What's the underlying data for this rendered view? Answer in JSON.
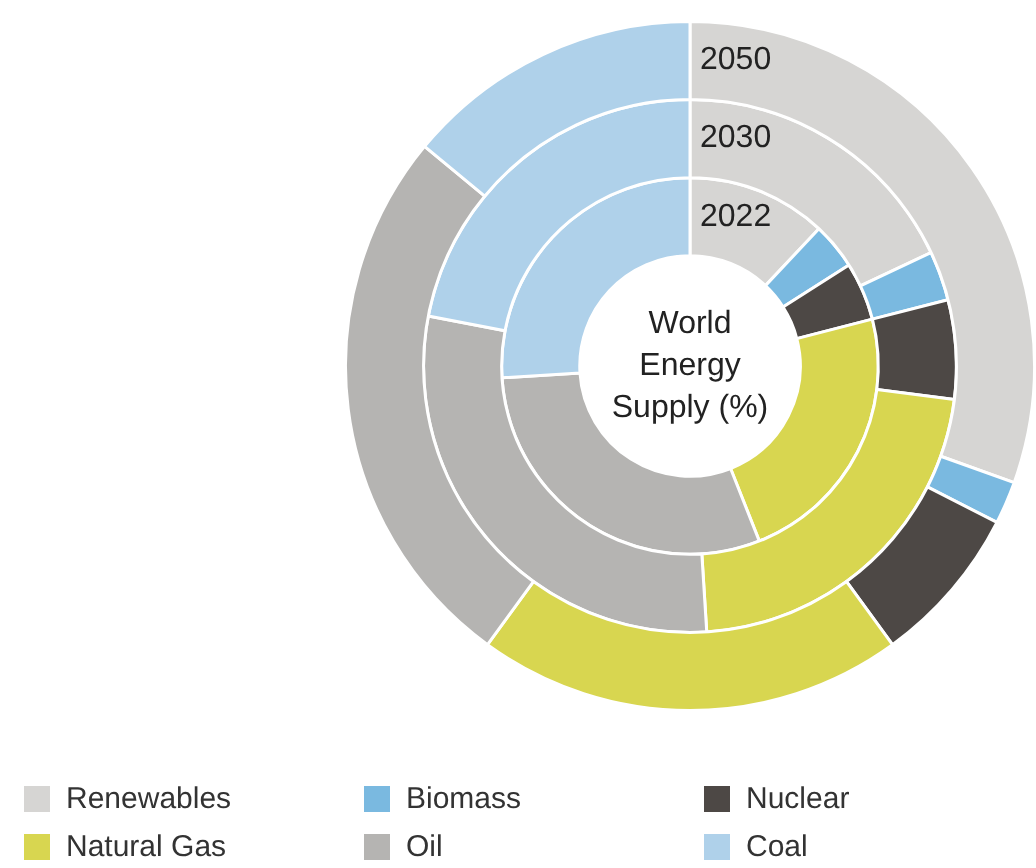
{
  "chart_data": {
    "type": "donut",
    "title": "World Energy Supply (%)",
    "categories": [
      "Renewables",
      "Biomass",
      "Nuclear",
      "Natural Gas",
      "Oil",
      "Coal"
    ],
    "colors": [
      "#d6d5d3",
      "#7ab9e0",
      "#4d4845",
      "#d8d650",
      "#b5b4b2",
      "#afd1ea"
    ],
    "series": [
      {
        "name": "2022",
        "values": [
          12,
          4,
          5,
          23,
          30,
          26
        ]
      },
      {
        "name": "2030",
        "values": [
          18,
          3,
          6,
          22,
          29,
          22
        ]
      },
      {
        "name": "2050",
        "values": [
          30.5,
          2,
          7.5,
          20,
          26,
          14
        ]
      }
    ],
    "legend": "bottom"
  }
}
